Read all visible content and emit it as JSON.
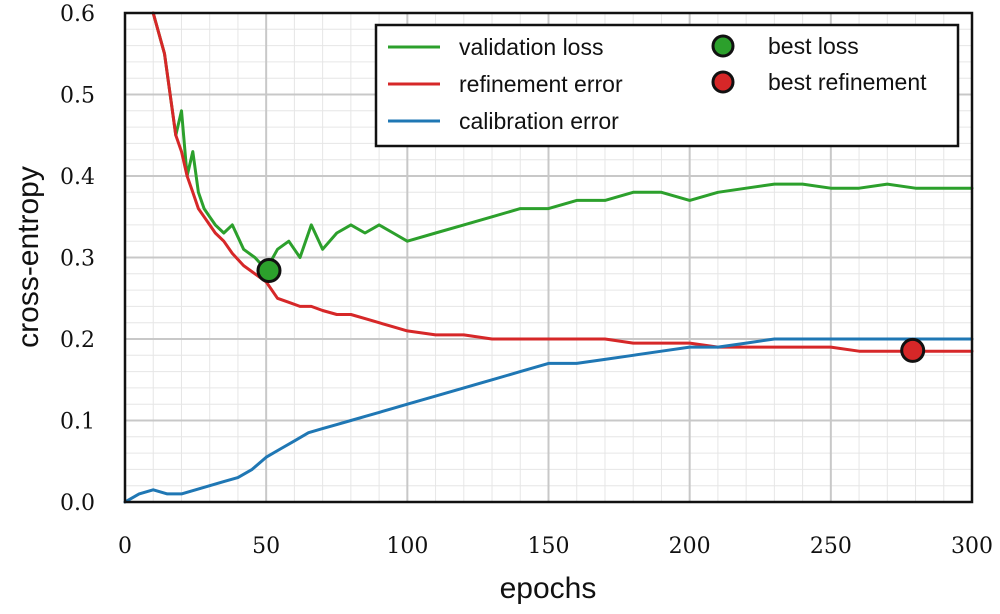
{
  "chart_data": {
    "type": "line",
    "xlabel": "epochs",
    "ylabel": "cross-entropy",
    "xlim": [
      0,
      300
    ],
    "ylim": [
      0.0,
      0.6
    ],
    "x_ticks": [
      0,
      50,
      100,
      150,
      200,
      250,
      300
    ],
    "y_ticks": [
      0.0,
      0.1,
      0.2,
      0.3,
      0.4,
      0.5,
      0.6
    ],
    "x_tick_labels": [
      "0",
      "50",
      "100",
      "150",
      "200",
      "250",
      "300"
    ],
    "y_tick_labels": [
      "0.0",
      "0.1",
      "0.2",
      "0.3",
      "0.4",
      "0.5",
      "0.6"
    ],
    "grid": true,
    "minor_grid": true,
    "legend_position": "top-right",
    "series": [
      {
        "name": "validation loss",
        "color": "#2ca02c",
        "x": [
          10,
          14,
          18,
          20,
          22,
          24,
          26,
          28,
          30,
          32,
          35,
          38,
          42,
          46,
          50,
          54,
          58,
          62,
          66,
          70,
          75,
          80,
          85,
          90,
          95,
          100,
          110,
          120,
          130,
          140,
          150,
          160,
          170,
          180,
          190,
          200,
          210,
          220,
          230,
          240,
          250,
          260,
          270,
          280,
          290,
          300
        ],
        "y": [
          0.6,
          0.55,
          0.45,
          0.48,
          0.4,
          0.43,
          0.38,
          0.36,
          0.35,
          0.34,
          0.33,
          0.34,
          0.31,
          0.3,
          0.285,
          0.31,
          0.32,
          0.3,
          0.34,
          0.31,
          0.33,
          0.34,
          0.33,
          0.34,
          0.33,
          0.32,
          0.33,
          0.34,
          0.35,
          0.36,
          0.36,
          0.37,
          0.37,
          0.38,
          0.38,
          0.37,
          0.38,
          0.385,
          0.39,
          0.39,
          0.385,
          0.385,
          0.39,
          0.385,
          0.385,
          0.385
        ]
      },
      {
        "name": "refinement error",
        "color": "#d62728",
        "x": [
          10,
          14,
          18,
          20,
          22,
          24,
          26,
          28,
          30,
          32,
          35,
          38,
          42,
          46,
          50,
          54,
          58,
          62,
          66,
          70,
          75,
          80,
          85,
          90,
          95,
          100,
          110,
          120,
          130,
          140,
          150,
          160,
          170,
          180,
          190,
          200,
          210,
          220,
          230,
          240,
          250,
          260,
          270,
          280,
          290,
          300
        ],
        "y": [
          0.6,
          0.55,
          0.45,
          0.43,
          0.4,
          0.38,
          0.36,
          0.35,
          0.34,
          0.33,
          0.32,
          0.305,
          0.29,
          0.28,
          0.27,
          0.25,
          0.245,
          0.24,
          0.24,
          0.235,
          0.23,
          0.23,
          0.225,
          0.22,
          0.215,
          0.21,
          0.205,
          0.205,
          0.2,
          0.2,
          0.2,
          0.2,
          0.2,
          0.195,
          0.195,
          0.195,
          0.19,
          0.19,
          0.19,
          0.19,
          0.19,
          0.185,
          0.185,
          0.185,
          0.185,
          0.185
        ]
      },
      {
        "name": "calibration error",
        "color": "#1f77b4",
        "x": [
          0,
          5,
          10,
          15,
          20,
          25,
          30,
          35,
          40,
          45,
          50,
          55,
          60,
          65,
          70,
          75,
          80,
          85,
          90,
          95,
          100,
          110,
          120,
          130,
          140,
          150,
          160,
          170,
          180,
          190,
          200,
          210,
          220,
          230,
          240,
          250,
          260,
          270,
          280,
          290,
          300
        ],
        "y": [
          0.0,
          0.01,
          0.015,
          0.01,
          0.01,
          0.015,
          0.02,
          0.025,
          0.03,
          0.04,
          0.055,
          0.065,
          0.075,
          0.085,
          0.09,
          0.095,
          0.1,
          0.105,
          0.11,
          0.115,
          0.12,
          0.13,
          0.14,
          0.15,
          0.16,
          0.17,
          0.17,
          0.175,
          0.18,
          0.185,
          0.19,
          0.19,
          0.195,
          0.2,
          0.2,
          0.2,
          0.2,
          0.2,
          0.2,
          0.2,
          0.2
        ]
      }
    ],
    "markers": [
      {
        "name": "best loss",
        "x": 51,
        "y": 0.284,
        "color": "#2ca02c"
      },
      {
        "name": "best refinement",
        "x": 279,
        "y": 0.186,
        "color": "#d62728"
      }
    ]
  }
}
